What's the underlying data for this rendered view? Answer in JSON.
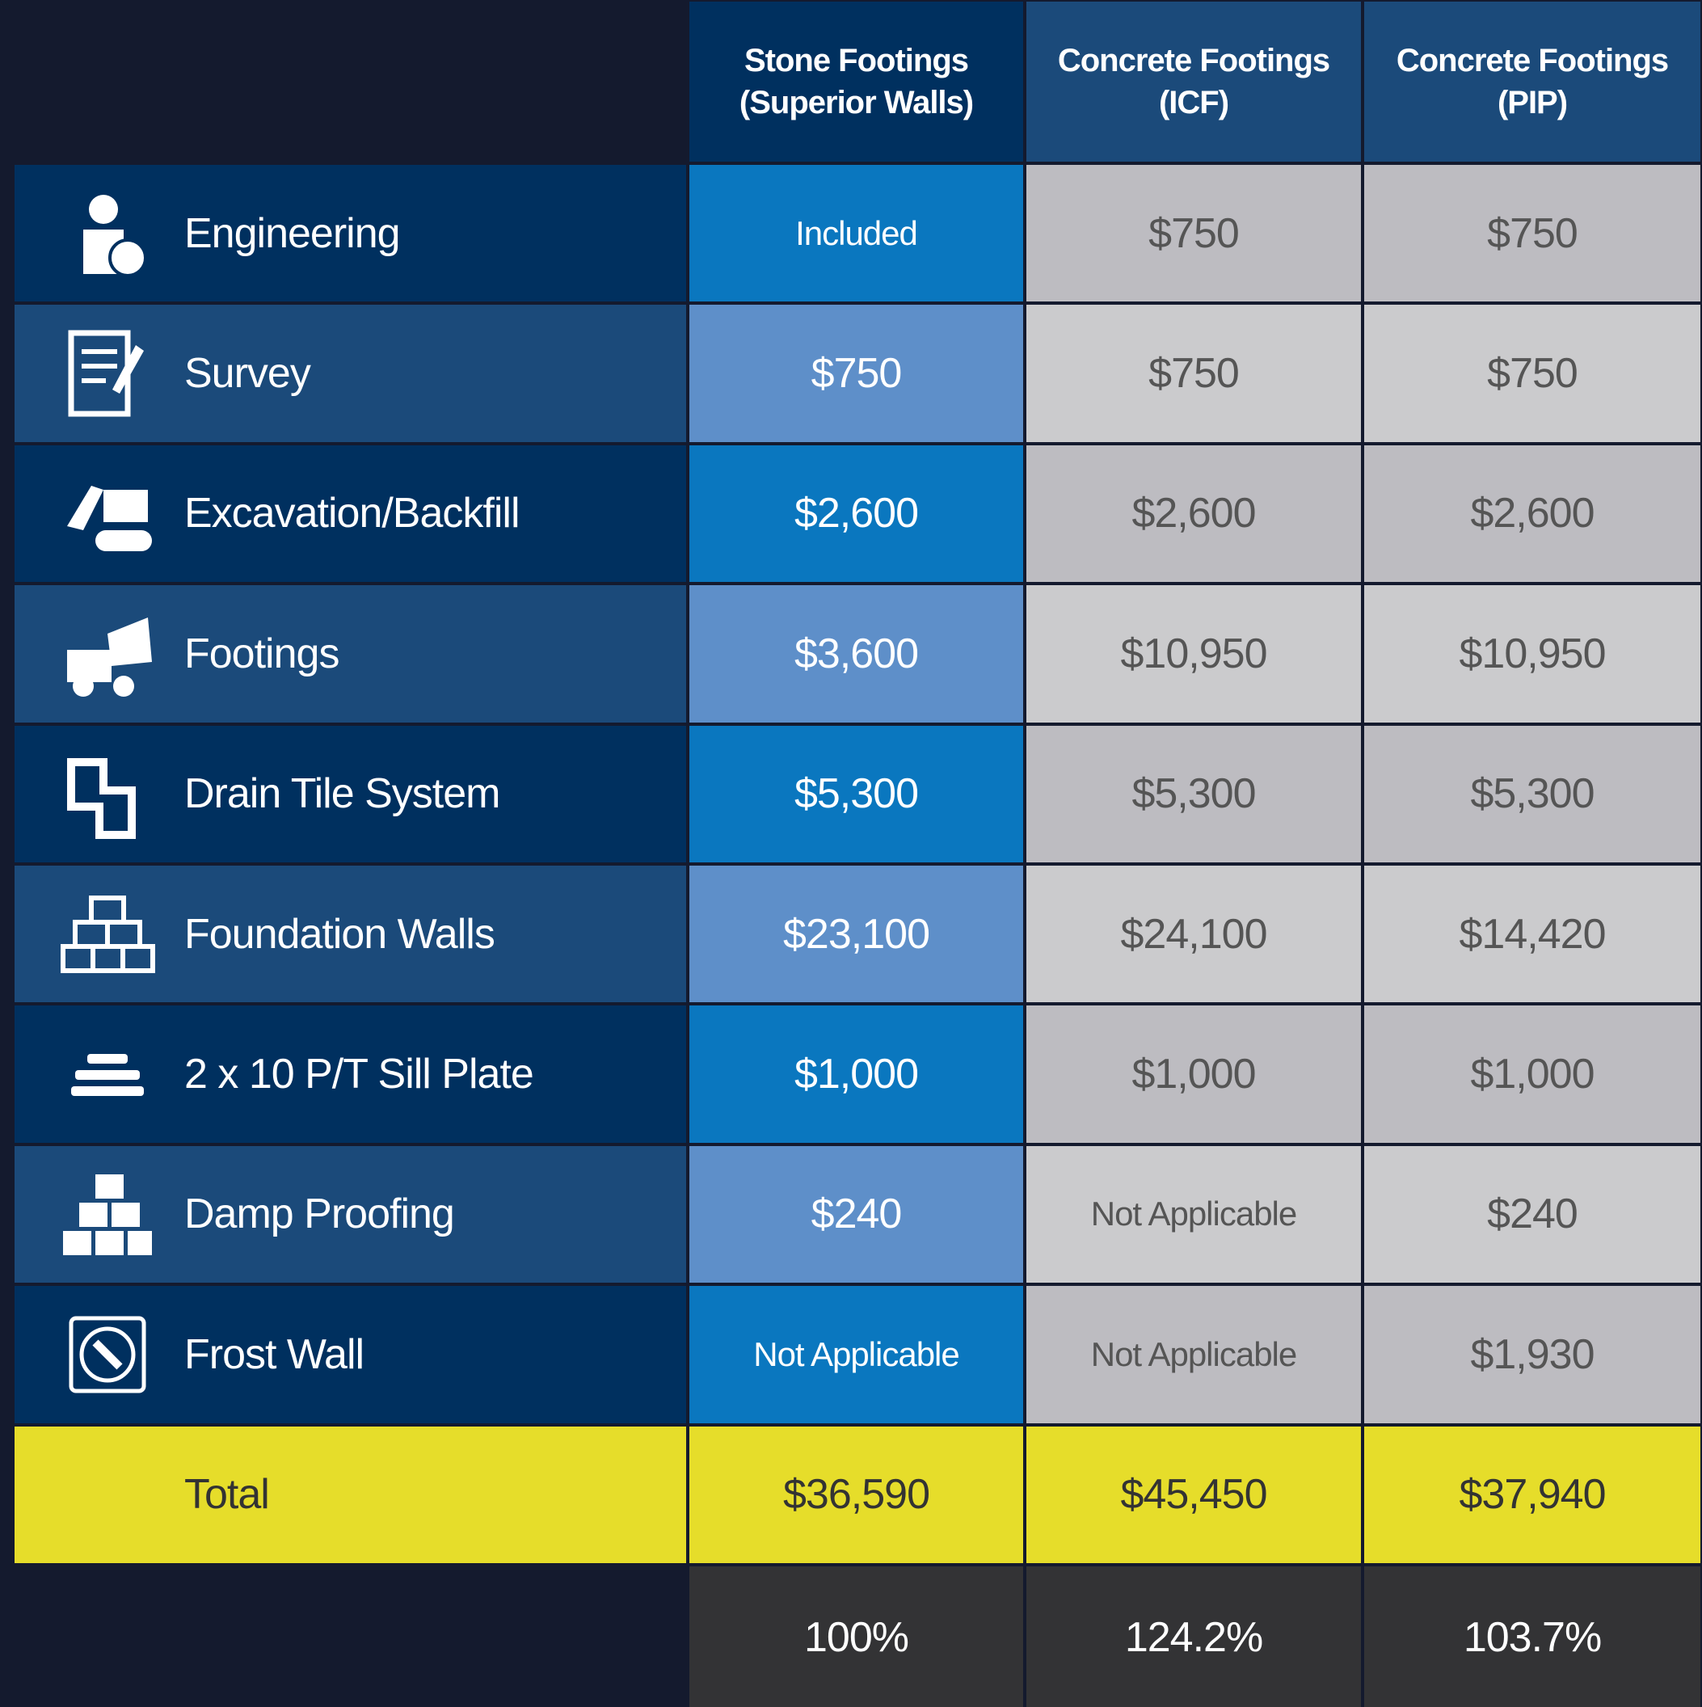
{
  "header": {
    "columns": [
      [
        "Stone Footings",
        "(Superior Walls)"
      ],
      [
        "Concrete Footings",
        "(ICF)"
      ],
      [
        "Concrete Footings",
        "(PIP)"
      ]
    ]
  },
  "rows": [
    {
      "label": "Engineering",
      "cells": [
        "Included",
        "$750",
        "$750"
      ]
    },
    {
      "label": "Survey",
      "cells": [
        "$750",
        "$750",
        "$750"
      ]
    },
    {
      "label": "Excavation/Backfill",
      "cells": [
        "$2,600",
        "$2,600",
        "$2,600"
      ]
    },
    {
      "label": "Footings",
      "cells": [
        "$3,600",
        "$10,950",
        "$10,950"
      ]
    },
    {
      "label": "Drain Tile System",
      "cells": [
        "$5,300",
        "$5,300",
        "$5,300"
      ]
    },
    {
      "label": "Foundation Walls",
      "cells": [
        "$23,100",
        "$24,100",
        "$14,420"
      ]
    },
    {
      "label": "2 x 10 P/T Sill Plate",
      "cells": [
        "$1,000",
        "$1,000",
        "$1,000"
      ]
    },
    {
      "label": "Damp Proofing",
      "cells": [
        "$240",
        "Not Applicable",
        "$240"
      ]
    },
    {
      "label": "Frost Wall",
      "cells": [
        "Not Applicable",
        "Not Applicable",
        "$1,930"
      ]
    }
  ],
  "total": {
    "label": "Total",
    "cells": [
      "$36,590",
      "$45,450",
      "$37,940"
    ]
  },
  "percent": [
    "100%",
    "124.2%",
    "103.7%"
  ]
}
